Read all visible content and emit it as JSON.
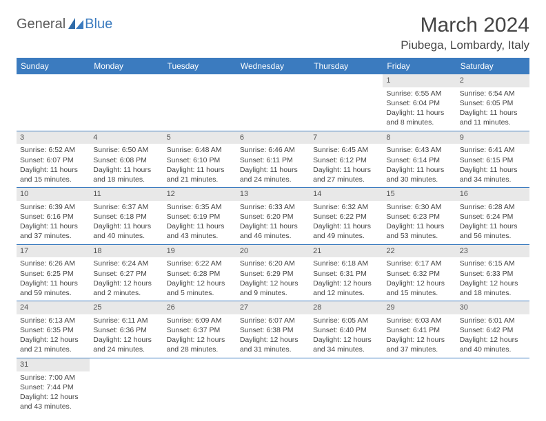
{
  "logo": {
    "part1": "General",
    "part2": "Blue"
  },
  "title": "March 2024",
  "location": "Piubega, Lombardy, Italy",
  "colors": {
    "header_bg": "#3b7bbf",
    "header_text": "#ffffff",
    "daynum_bg": "#e8e8e8",
    "text": "#444444",
    "row_border": "#3b7bbf",
    "page_bg": "#ffffff"
  },
  "typography": {
    "title_fontsize": 30,
    "location_fontsize": 17,
    "weekday_fontsize": 12,
    "cell_fontsize": 10.5
  },
  "weekdays": [
    "Sunday",
    "Monday",
    "Tuesday",
    "Wednesday",
    "Thursday",
    "Friday",
    "Saturday"
  ],
  "weeks": [
    [
      {
        "day": "",
        "sunrise": "",
        "sunset": "",
        "daylight": ""
      },
      {
        "day": "",
        "sunrise": "",
        "sunset": "",
        "daylight": ""
      },
      {
        "day": "",
        "sunrise": "",
        "sunset": "",
        "daylight": ""
      },
      {
        "day": "",
        "sunrise": "",
        "sunset": "",
        "daylight": ""
      },
      {
        "day": "",
        "sunrise": "",
        "sunset": "",
        "daylight": ""
      },
      {
        "day": "1",
        "sunrise": "Sunrise: 6:55 AM",
        "sunset": "Sunset: 6:04 PM",
        "daylight": "Daylight: 11 hours and 8 minutes."
      },
      {
        "day": "2",
        "sunrise": "Sunrise: 6:54 AM",
        "sunset": "Sunset: 6:05 PM",
        "daylight": "Daylight: 11 hours and 11 minutes."
      }
    ],
    [
      {
        "day": "3",
        "sunrise": "Sunrise: 6:52 AM",
        "sunset": "Sunset: 6:07 PM",
        "daylight": "Daylight: 11 hours and 15 minutes."
      },
      {
        "day": "4",
        "sunrise": "Sunrise: 6:50 AM",
        "sunset": "Sunset: 6:08 PM",
        "daylight": "Daylight: 11 hours and 18 minutes."
      },
      {
        "day": "5",
        "sunrise": "Sunrise: 6:48 AM",
        "sunset": "Sunset: 6:10 PM",
        "daylight": "Daylight: 11 hours and 21 minutes."
      },
      {
        "day": "6",
        "sunrise": "Sunrise: 6:46 AM",
        "sunset": "Sunset: 6:11 PM",
        "daylight": "Daylight: 11 hours and 24 minutes."
      },
      {
        "day": "7",
        "sunrise": "Sunrise: 6:45 AM",
        "sunset": "Sunset: 6:12 PM",
        "daylight": "Daylight: 11 hours and 27 minutes."
      },
      {
        "day": "8",
        "sunrise": "Sunrise: 6:43 AM",
        "sunset": "Sunset: 6:14 PM",
        "daylight": "Daylight: 11 hours and 30 minutes."
      },
      {
        "day": "9",
        "sunrise": "Sunrise: 6:41 AM",
        "sunset": "Sunset: 6:15 PM",
        "daylight": "Daylight: 11 hours and 34 minutes."
      }
    ],
    [
      {
        "day": "10",
        "sunrise": "Sunrise: 6:39 AM",
        "sunset": "Sunset: 6:16 PM",
        "daylight": "Daylight: 11 hours and 37 minutes."
      },
      {
        "day": "11",
        "sunrise": "Sunrise: 6:37 AM",
        "sunset": "Sunset: 6:18 PM",
        "daylight": "Daylight: 11 hours and 40 minutes."
      },
      {
        "day": "12",
        "sunrise": "Sunrise: 6:35 AM",
        "sunset": "Sunset: 6:19 PM",
        "daylight": "Daylight: 11 hours and 43 minutes."
      },
      {
        "day": "13",
        "sunrise": "Sunrise: 6:33 AM",
        "sunset": "Sunset: 6:20 PM",
        "daylight": "Daylight: 11 hours and 46 minutes."
      },
      {
        "day": "14",
        "sunrise": "Sunrise: 6:32 AM",
        "sunset": "Sunset: 6:22 PM",
        "daylight": "Daylight: 11 hours and 49 minutes."
      },
      {
        "day": "15",
        "sunrise": "Sunrise: 6:30 AM",
        "sunset": "Sunset: 6:23 PM",
        "daylight": "Daylight: 11 hours and 53 minutes."
      },
      {
        "day": "16",
        "sunrise": "Sunrise: 6:28 AM",
        "sunset": "Sunset: 6:24 PM",
        "daylight": "Daylight: 11 hours and 56 minutes."
      }
    ],
    [
      {
        "day": "17",
        "sunrise": "Sunrise: 6:26 AM",
        "sunset": "Sunset: 6:25 PM",
        "daylight": "Daylight: 11 hours and 59 minutes."
      },
      {
        "day": "18",
        "sunrise": "Sunrise: 6:24 AM",
        "sunset": "Sunset: 6:27 PM",
        "daylight": "Daylight: 12 hours and 2 minutes."
      },
      {
        "day": "19",
        "sunrise": "Sunrise: 6:22 AM",
        "sunset": "Sunset: 6:28 PM",
        "daylight": "Daylight: 12 hours and 5 minutes."
      },
      {
        "day": "20",
        "sunrise": "Sunrise: 6:20 AM",
        "sunset": "Sunset: 6:29 PM",
        "daylight": "Daylight: 12 hours and 9 minutes."
      },
      {
        "day": "21",
        "sunrise": "Sunrise: 6:18 AM",
        "sunset": "Sunset: 6:31 PM",
        "daylight": "Daylight: 12 hours and 12 minutes."
      },
      {
        "day": "22",
        "sunrise": "Sunrise: 6:17 AM",
        "sunset": "Sunset: 6:32 PM",
        "daylight": "Daylight: 12 hours and 15 minutes."
      },
      {
        "day": "23",
        "sunrise": "Sunrise: 6:15 AM",
        "sunset": "Sunset: 6:33 PM",
        "daylight": "Daylight: 12 hours and 18 minutes."
      }
    ],
    [
      {
        "day": "24",
        "sunrise": "Sunrise: 6:13 AM",
        "sunset": "Sunset: 6:35 PM",
        "daylight": "Daylight: 12 hours and 21 minutes."
      },
      {
        "day": "25",
        "sunrise": "Sunrise: 6:11 AM",
        "sunset": "Sunset: 6:36 PM",
        "daylight": "Daylight: 12 hours and 24 minutes."
      },
      {
        "day": "26",
        "sunrise": "Sunrise: 6:09 AM",
        "sunset": "Sunset: 6:37 PM",
        "daylight": "Daylight: 12 hours and 28 minutes."
      },
      {
        "day": "27",
        "sunrise": "Sunrise: 6:07 AM",
        "sunset": "Sunset: 6:38 PM",
        "daylight": "Daylight: 12 hours and 31 minutes."
      },
      {
        "day": "28",
        "sunrise": "Sunrise: 6:05 AM",
        "sunset": "Sunset: 6:40 PM",
        "daylight": "Daylight: 12 hours and 34 minutes."
      },
      {
        "day": "29",
        "sunrise": "Sunrise: 6:03 AM",
        "sunset": "Sunset: 6:41 PM",
        "daylight": "Daylight: 12 hours and 37 minutes."
      },
      {
        "day": "30",
        "sunrise": "Sunrise: 6:01 AM",
        "sunset": "Sunset: 6:42 PM",
        "daylight": "Daylight: 12 hours and 40 minutes."
      }
    ],
    [
      {
        "day": "31",
        "sunrise": "Sunrise: 7:00 AM",
        "sunset": "Sunset: 7:44 PM",
        "daylight": "Daylight: 12 hours and 43 minutes."
      },
      {
        "day": "",
        "sunrise": "",
        "sunset": "",
        "daylight": ""
      },
      {
        "day": "",
        "sunrise": "",
        "sunset": "",
        "daylight": ""
      },
      {
        "day": "",
        "sunrise": "",
        "sunset": "",
        "daylight": ""
      },
      {
        "day": "",
        "sunrise": "",
        "sunset": "",
        "daylight": ""
      },
      {
        "day": "",
        "sunrise": "",
        "sunset": "",
        "daylight": ""
      },
      {
        "day": "",
        "sunrise": "",
        "sunset": "",
        "daylight": ""
      }
    ]
  ]
}
